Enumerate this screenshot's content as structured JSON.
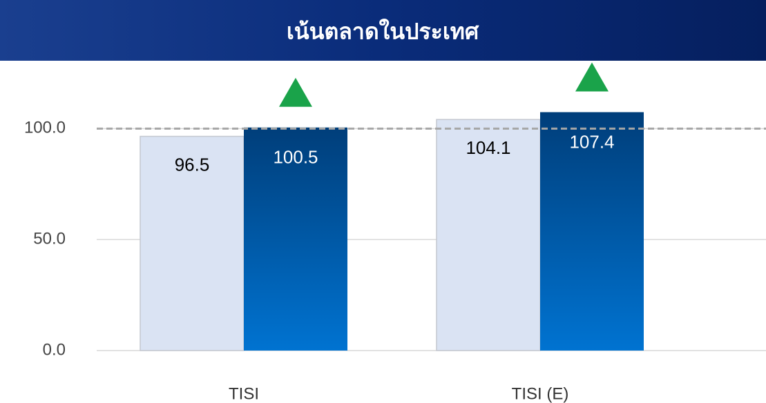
{
  "chart_data": {
    "type": "bar",
    "title": "เน้นตลาดในประเทศ",
    "categories": [
      "TISI",
      "TISI (E)"
    ],
    "series": [
      {
        "color": "#dae3f3",
        "values": [
          96.5,
          104.1
        ]
      },
      {
        "color": "#0062b5",
        "values": [
          100.5,
          107.4
        ]
      }
    ],
    "ylim": [
      0,
      120
    ],
    "yticks": [
      {
        "value": 0,
        "label": "0.0"
      },
      {
        "value": 50,
        "label": "50.0"
      },
      {
        "value": 100,
        "label": "100.0"
      }
    ],
    "reference_line": 100,
    "grid": true
  }
}
